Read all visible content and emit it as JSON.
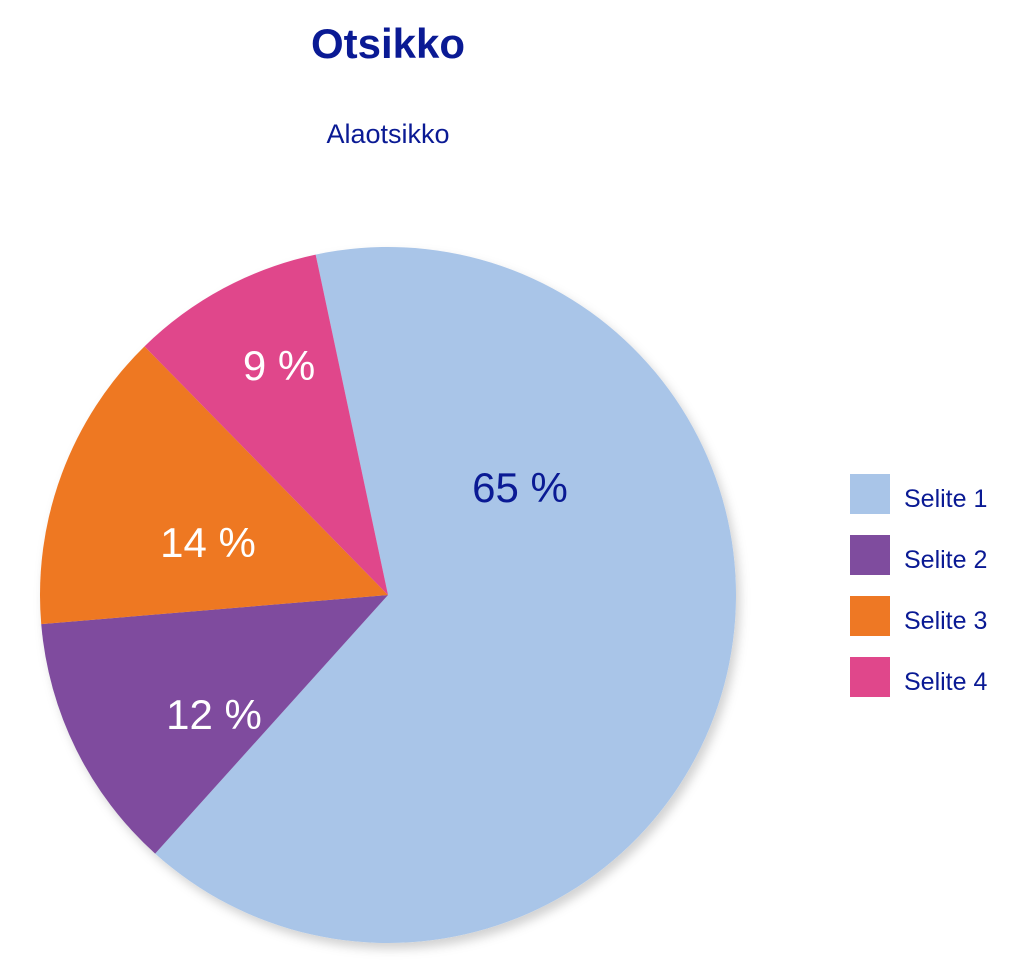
{
  "colors": {
    "title": "#0a1a94",
    "slice_1": "#a9c5e8",
    "slice_2": "#7f4c9e",
    "slice_3": "#ee7824",
    "slice_4": "#e0478b",
    "label_dark": "#0a1a94",
    "label_light": "#ffffff"
  },
  "chart_data": {
    "type": "pie",
    "title": "Otsikko",
    "subtitle": "Alaotsikko",
    "legend_position": "right",
    "slices": [
      {
        "name": "Selite 1",
        "value": 65,
        "label": "65 %",
        "color": "#a9c5e8",
        "label_color": "#0a1a94"
      },
      {
        "name": "Selite 2",
        "value": 12,
        "label": "12 %",
        "color": "#7f4c9e",
        "label_color": "#ffffff"
      },
      {
        "name": "Selite 3",
        "value": 14,
        "label": "14 %",
        "color": "#ee7824",
        "label_color": "#ffffff"
      },
      {
        "name": "Selite 4",
        "value": 9,
        "label": "9 %",
        "color": "#e0478b",
        "label_color": "#ffffff"
      }
    ]
  }
}
